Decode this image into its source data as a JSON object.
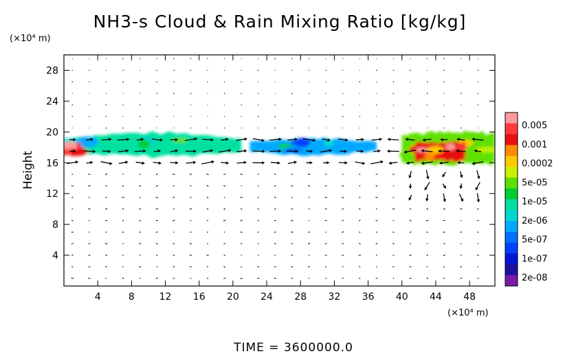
{
  "chart_data": {
    "type": "heatmap",
    "title": "NH3-s Cloud & Rain Mixing Ratio [kg/kg]",
    "ylabel": "Height",
    "xlabel": "",
    "x_unit": "(×10⁴ m)",
    "y_unit": "(×10⁴ m)",
    "xlim": [
      0,
      51
    ],
    "ylim": [
      0,
      30
    ],
    "x_ticks": [
      4,
      8,
      12,
      16,
      20,
      24,
      28,
      32,
      36,
      40,
      44,
      48
    ],
    "y_ticks": [
      4,
      8,
      12,
      16,
      20,
      24,
      28
    ],
    "footer": "TIME = 3600000.0",
    "colorbar": {
      "labels": [
        "0.005",
        "0.001",
        "0.0002",
        "5e-05",
        "1e-05",
        "2e-06",
        "5e-07",
        "1e-07",
        "2e-08"
      ],
      "colors": [
        "#ff9a9a",
        "#ff3a3a",
        "#e81010",
        "#ff8c00",
        "#ffc800",
        "#c8f000",
        "#5ee000",
        "#00cc30",
        "#00e0a0",
        "#00d8d0",
        "#00a8ff",
        "#0070ff",
        "#0040ff",
        "#0018d0",
        "#20109c",
        "#7a1aa8"
      ]
    },
    "regions": [
      {
        "x": [
          0,
          21
        ],
        "y": [
          16.8,
          19.9
        ],
        "level": 8
      },
      {
        "x": [
          22,
          37
        ],
        "y": [
          17.0,
          19.2
        ],
        "level": 10
      },
      {
        "x": [
          40,
          51
        ],
        "y": [
          15.9,
          19.9
        ],
        "level": 6
      },
      {
        "x": [
          0,
          2
        ],
        "y": [
          16.9,
          18.6
        ],
        "level": 2
      },
      {
        "x": [
          41.5,
          47.5
        ],
        "y": [
          16.2,
          18.7
        ],
        "level": 2
      }
    ]
  }
}
